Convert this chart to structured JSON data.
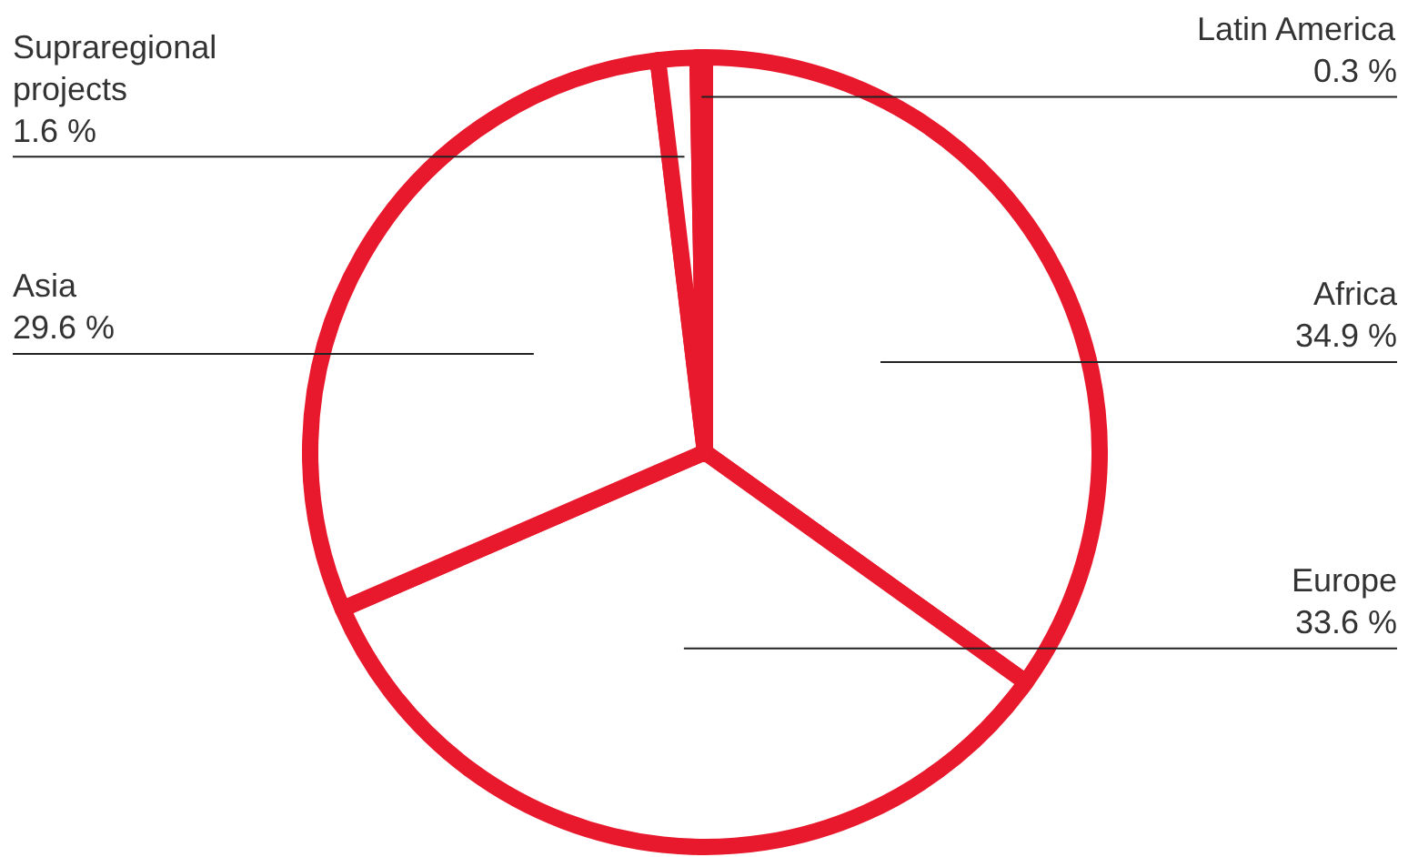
{
  "chart_data": {
    "type": "pie",
    "categories": [
      "Africa",
      "Europe",
      "Asia",
      "Supraregional projects",
      "Latin America"
    ],
    "values": [
      34.9,
      33.6,
      29.6,
      1.6,
      0.3
    ],
    "value_labels": [
      "34.9 %",
      "33.6 %",
      "29.6 %",
      "1.6 %",
      "0.3 %"
    ],
    "colors": [
      "#e8192c",
      "#e8192c",
      "#e8192c",
      "#e8192c",
      "#e8192c"
    ]
  }
}
